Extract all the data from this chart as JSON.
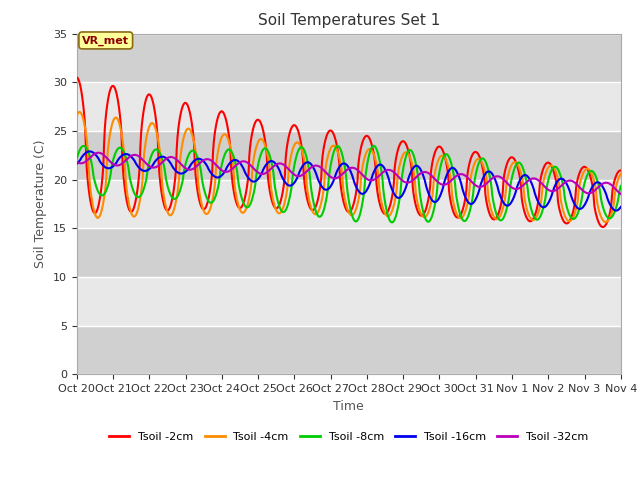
{
  "title": "Soil Temperatures Set 1",
  "xlabel": "Time",
  "ylabel": "Soil Temperature (C)",
  "ylim": [
    0,
    35
  ],
  "yticks": [
    0,
    5,
    10,
    15,
    20,
    25,
    30,
    35
  ],
  "xtick_labels": [
    "Oct 20",
    "Oct 21",
    "Oct 22",
    "Oct 23",
    "Oct 24",
    "Oct 25",
    "Oct 26",
    "Oct 27",
    "Oct 28",
    "Oct 29",
    "Oct 30",
    "Oct 31",
    "Nov 1",
    "Nov 2",
    "Nov 3",
    "Nov 4"
  ],
  "annotation_text": "VR_met",
  "colors": {
    "2cm": "#ff0000",
    "4cm": "#ff8c00",
    "8cm": "#00cc00",
    "16cm": "#0000ee",
    "32cm": "#bb00bb"
  },
  "legend_labels": [
    "Tsoil -2cm",
    "Tsoil -4cm",
    "Tsoil -8cm",
    "Tsoil -16cm",
    "Tsoil -32cm"
  ],
  "bg_light": "#e8e8e8",
  "bg_dark": "#d0d0d0",
  "fig_bg_color": "#ffffff",
  "grid_color": "#ffffff",
  "n_points": 720
}
